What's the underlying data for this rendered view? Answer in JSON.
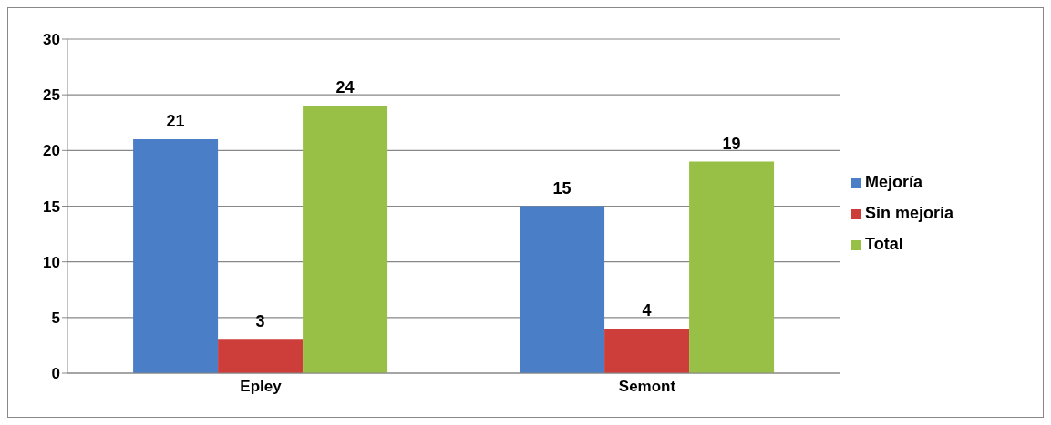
{
  "chart_data": {
    "type": "bar",
    "categories": [
      "Epley",
      "Semont"
    ],
    "series": [
      {
        "name": "Mejoría",
        "color": "#4a7ec6",
        "values": [
          21,
          15
        ]
      },
      {
        "name": "Sin mejoría",
        "color": "#cd3e3b",
        "values": [
          3,
          4
        ]
      },
      {
        "name": "Total",
        "color": "#98c047",
        "values": [
          24,
          19
        ]
      }
    ],
    "ylim": [
      0,
      30
    ],
    "yticks": [
      0,
      5,
      10,
      15,
      20,
      25,
      30
    ],
    "grid": "y",
    "legend": "right",
    "data_labels": true
  }
}
